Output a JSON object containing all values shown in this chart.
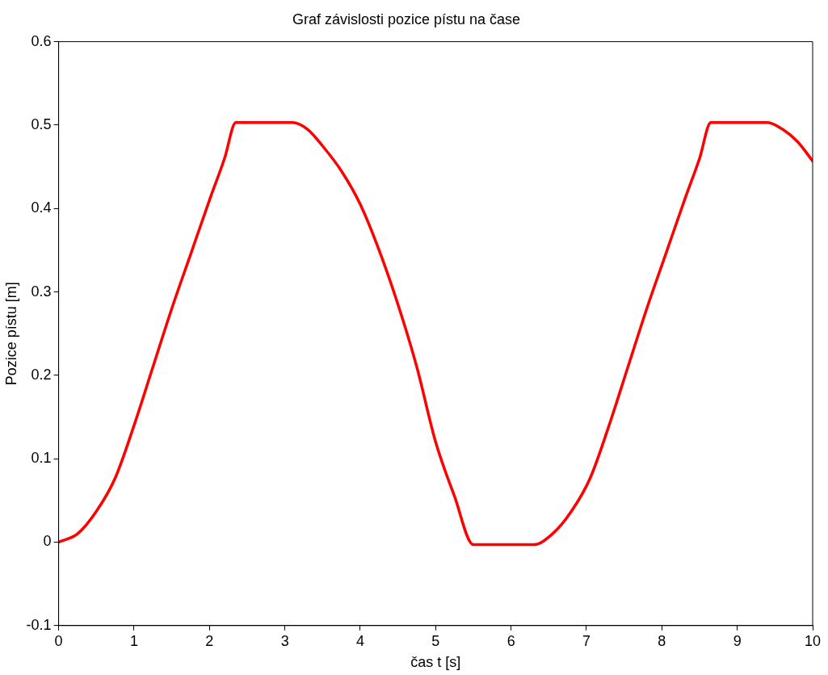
{
  "chart_data": {
    "type": "line",
    "title": "Graf závislosti pozice pístu na čase",
    "xlabel": "čas t [s]",
    "ylabel": "Pozice pístu [m]",
    "x": [
      0,
      0.25,
      0.5,
      0.75,
      1,
      1.25,
      1.5,
      1.75,
      2,
      2.2,
      2.35,
      3.1,
      3.3,
      3.5,
      3.75,
      4,
      4.25,
      4.5,
      4.75,
      5,
      5.25,
      5.5,
      6.3,
      6.55,
      6.8,
      7.05,
      7.3,
      7.55,
      7.8,
      8.05,
      8.3,
      8.5,
      8.65,
      9.4,
      9.6,
      9.8,
      10
    ],
    "series": [
      {
        "color": "#ff0000",
        "values": [
          0,
          0.01,
          0.037,
          0.077,
          0.14,
          0.21,
          0.28,
          0.345,
          0.41,
          0.46,
          0.503,
          0.503,
          0.495,
          0.475,
          0.445,
          0.405,
          0.35,
          0.285,
          0.21,
          0.12,
          0.055,
          -0.003,
          -0.003,
          0.01,
          0.037,
          0.077,
          0.14,
          0.21,
          0.28,
          0.345,
          0.41,
          0.46,
          0.503,
          0.503,
          0.495,
          0.48,
          0.457
        ]
      }
    ],
    "xlim": [
      0,
      10
    ],
    "xticks": [
      0,
      1,
      2,
      3,
      4,
      5,
      6,
      7,
      8,
      9,
      10
    ],
    "ylim": [
      -0.1,
      0.6
    ],
    "yticks": [
      -0.1,
      0,
      0.1,
      0.2,
      0.3,
      0.4,
      0.5,
      0.6
    ],
    "grid": false,
    "legend": false,
    "marker": "none",
    "line_style": "solid"
  }
}
